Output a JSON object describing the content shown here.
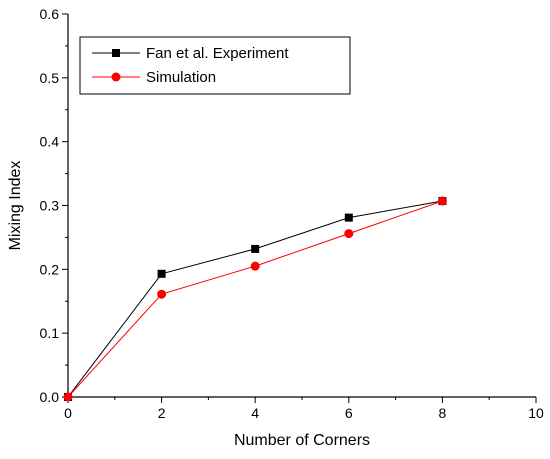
{
  "chart_data": {
    "type": "line",
    "title": "",
    "xlabel": "Number of Corners",
    "ylabel": "Mixing Index",
    "xlim": [
      0,
      10
    ],
    "ylim": [
      0,
      0.6
    ],
    "xticks": [
      0,
      2,
      4,
      6,
      8,
      10
    ],
    "yticks": [
      0.0,
      0.1,
      0.2,
      0.3,
      0.4,
      0.5,
      0.6
    ],
    "xtick_labels": [
      "0",
      "2",
      "4",
      "6",
      "8",
      "10"
    ],
    "ytick_labels": [
      "0.0",
      "0.1",
      "0.2",
      "0.3",
      "0.4",
      "0.5",
      "0.6"
    ],
    "grid": false,
    "legend_position": "top-left",
    "series": [
      {
        "name": "Fan et al. Experiment",
        "color": "#000000",
        "marker": "square",
        "x": [
          0,
          2,
          4,
          6,
          8
        ],
        "y": [
          0.0,
          0.193,
          0.232,
          0.281,
          0.307
        ]
      },
      {
        "name": "Simulation",
        "color": "#ff0000",
        "marker": "circle",
        "x": [
          0,
          2,
          4,
          6,
          8
        ],
        "y": [
          0.0,
          0.161,
          0.205,
          0.256,
          0.307
        ]
      }
    ]
  }
}
